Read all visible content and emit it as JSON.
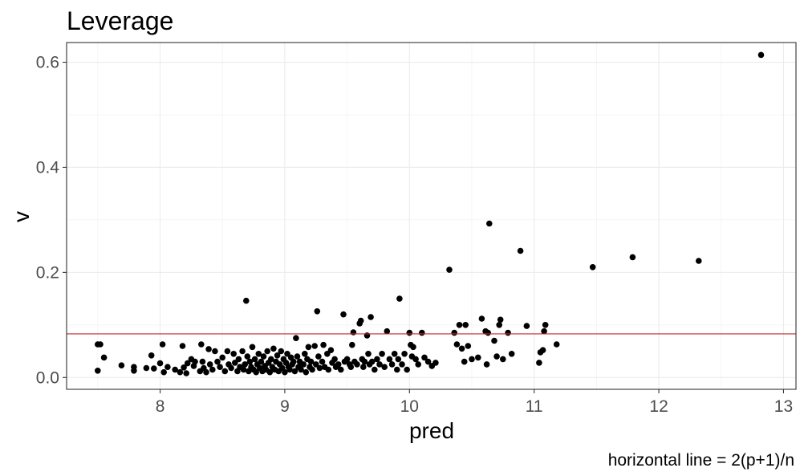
{
  "chart_data": {
    "type": "scatter",
    "title": "Leverage",
    "xlabel": "pred",
    "ylabel": "v",
    "caption": "horizontal line = 2(p+1)/n",
    "xlim": [
      7.25,
      13.1
    ],
    "ylim": [
      -0.0225,
      0.6375
    ],
    "x_ticks": [
      8,
      9,
      10,
      11,
      12,
      13
    ],
    "y_ticks": [
      0.0,
      0.2,
      0.4,
      0.6
    ],
    "x_tick_labels": [
      "8",
      "9",
      "10",
      "11",
      "12",
      "13"
    ],
    "y_tick_labels": [
      "0.0",
      "0.2",
      "0.4",
      "0.6"
    ],
    "grid": true,
    "hline": {
      "y": 0.083,
      "color": "#c0282d"
    },
    "point_color": "#000000",
    "points": [
      [
        7.5,
        0.063
      ],
      [
        7.52,
        0.063
      ],
      [
        7.5,
        0.013
      ],
      [
        7.55,
        0.038
      ],
      [
        7.69,
        0.023
      ],
      [
        7.79,
        0.02
      ],
      [
        7.79,
        0.013
      ],
      [
        7.89,
        0.018
      ],
      [
        7.93,
        0.042
      ],
      [
        7.95,
        0.017
      ],
      [
        8.0,
        0.027
      ],
      [
        8.02,
        0.063
      ],
      [
        8.03,
        0.01
      ],
      [
        8.06,
        0.02
      ],
      [
        8.12,
        0.015
      ],
      [
        8.16,
        0.01
      ],
      [
        8.18,
        0.06
      ],
      [
        8.19,
        0.019
      ],
      [
        8.21,
        0.008
      ],
      [
        8.22,
        0.027
      ],
      [
        8.25,
        0.035
      ],
      [
        8.27,
        0.022
      ],
      [
        8.28,
        0.03
      ],
      [
        8.32,
        0.012
      ],
      [
        8.33,
        0.063
      ],
      [
        8.34,
        0.03
      ],
      [
        8.35,
        0.018
      ],
      [
        8.37,
        0.01
      ],
      [
        8.39,
        0.054
      ],
      [
        8.4,
        0.025
      ],
      [
        8.42,
        0.015
      ],
      [
        8.44,
        0.05
      ],
      [
        8.46,
        0.03
      ],
      [
        8.48,
        0.02
      ],
      [
        8.5,
        0.038
      ],
      [
        8.52,
        0.012
      ],
      [
        8.54,
        0.05
      ],
      [
        8.55,
        0.025
      ],
      [
        8.57,
        0.018
      ],
      [
        8.59,
        0.045
      ],
      [
        8.6,
        0.028
      ],
      [
        8.62,
        0.012
      ],
      [
        8.63,
        0.035
      ],
      [
        8.64,
        0.02
      ],
      [
        8.66,
        0.05
      ],
      [
        8.67,
        0.015
      ],
      [
        8.68,
        0.025
      ],
      [
        8.69,
        0.146
      ],
      [
        8.7,
        0.04
      ],
      [
        8.71,
        0.012
      ],
      [
        8.72,
        0.03
      ],
      [
        8.73,
        0.02
      ],
      [
        8.74,
        0.058
      ],
      [
        8.75,
        0.015
      ],
      [
        8.76,
        0.035
      ],
      [
        8.77,
        0.01
      ],
      [
        8.78,
        0.025
      ],
      [
        8.79,
        0.045
      ],
      [
        8.8,
        0.018
      ],
      [
        8.81,
        0.03
      ],
      [
        8.82,
        0.012
      ],
      [
        8.83,
        0.04
      ],
      [
        8.84,
        0.022
      ],
      [
        8.85,
        0.015
      ],
      [
        8.86,
        0.05
      ],
      [
        8.87,
        0.028
      ],
      [
        8.88,
        0.01
      ],
      [
        8.89,
        0.035
      ],
      [
        8.9,
        0.02
      ],
      [
        8.91,
        0.055
      ],
      [
        8.92,
        0.015
      ],
      [
        8.93,
        0.03
      ],
      [
        8.94,
        0.042
      ],
      [
        8.95,
        0.012
      ],
      [
        8.96,
        0.025
      ],
      [
        8.97,
        0.05
      ],
      [
        8.98,
        0.018
      ],
      [
        8.99,
        0.035
      ],
      [
        9.0,
        0.01
      ],
      [
        9.01,
        0.028
      ],
      [
        9.02,
        0.045
      ],
      [
        9.03,
        0.02
      ],
      [
        9.04,
        0.015
      ],
      [
        9.05,
        0.038
      ],
      [
        9.06,
        0.025
      ],
      [
        9.07,
        0.03
      ],
      [
        9.08,
        0.012
      ],
      [
        9.09,
        0.075
      ],
      [
        9.1,
        0.04
      ],
      [
        9.11,
        0.02
      ],
      [
        9.12,
        0.03
      ],
      [
        9.13,
        0.015
      ],
      [
        9.15,
        0.025
      ],
      [
        9.16,
        0.045
      ],
      [
        9.17,
        0.01
      ],
      [
        9.18,
        0.035
      ],
      [
        9.19,
        0.058
      ],
      [
        9.2,
        0.02
      ],
      [
        9.21,
        0.03
      ],
      [
        9.22,
        0.015
      ],
      [
        9.24,
        0.06
      ],
      [
        9.25,
        0.025
      ],
      [
        9.26,
        0.126
      ],
      [
        9.27,
        0.04
      ],
      [
        9.28,
        0.018
      ],
      [
        9.3,
        0.03
      ],
      [
        9.31,
        0.062
      ],
      [
        9.32,
        0.02
      ],
      [
        9.34,
        0.045
      ],
      [
        9.35,
        0.015
      ],
      [
        9.37,
        0.052
      ],
      [
        9.38,
        0.028
      ],
      [
        9.4,
        0.035
      ],
      [
        9.41,
        0.02
      ],
      [
        9.43,
        0.025
      ],
      [
        9.45,
        0.015
      ],
      [
        9.47,
        0.12
      ],
      [
        9.48,
        0.03
      ],
      [
        9.5,
        0.035
      ],
      [
        9.52,
        0.025
      ],
      [
        9.53,
        0.02
      ],
      [
        9.54,
        0.062
      ],
      [
        9.55,
        0.086
      ],
      [
        9.56,
        0.03
      ],
      [
        9.58,
        0.025
      ],
      [
        9.6,
        0.103
      ],
      [
        9.61,
        0.108
      ],
      [
        9.62,
        0.035
      ],
      [
        9.63,
        0.02
      ],
      [
        9.64,
        0.03
      ],
      [
        9.66,
        0.08
      ],
      [
        9.67,
        0.045
      ],
      [
        9.68,
        0.025
      ],
      [
        9.69,
        0.115
      ],
      [
        9.7,
        0.03
      ],
      [
        9.72,
        0.015
      ],
      [
        9.74,
        0.035
      ],
      [
        9.76,
        0.025
      ],
      [
        9.78,
        0.045
      ],
      [
        9.8,
        0.02
      ],
      [
        9.82,
        0.088
      ],
      [
        9.84,
        0.035
      ],
      [
        9.86,
        0.025
      ],
      [
        9.88,
        0.045
      ],
      [
        9.9,
        0.015
      ],
      [
        9.91,
        0.035
      ],
      [
        9.92,
        0.15
      ],
      [
        9.94,
        0.025
      ],
      [
        9.96,
        0.045
      ],
      [
        9.98,
        0.015
      ],
      [
        10.0,
        0.085
      ],
      [
        10.01,
        0.062
      ],
      [
        10.02,
        0.04
      ],
      [
        10.03,
        0.058
      ],
      [
        10.05,
        0.035
      ],
      [
        10.07,
        0.025
      ],
      [
        10.1,
        0.085
      ],
      [
        10.12,
        0.038
      ],
      [
        10.15,
        0.03
      ],
      [
        10.18,
        0.022
      ],
      [
        10.21,
        0.028
      ],
      [
        10.32,
        0.205
      ],
      [
        10.36,
        0.085
      ],
      [
        10.38,
        0.063
      ],
      [
        10.4,
        0.1
      ],
      [
        10.42,
        0.055
      ],
      [
        10.44,
        0.03
      ],
      [
        10.45,
        0.1
      ],
      [
        10.47,
        0.06
      ],
      [
        10.5,
        0.035
      ],
      [
        10.55,
        0.038
      ],
      [
        10.58,
        0.112
      ],
      [
        10.61,
        0.088
      ],
      [
        10.62,
        0.025
      ],
      [
        10.63,
        0.085
      ],
      [
        10.64,
        0.293
      ],
      [
        10.68,
        0.07
      ],
      [
        10.7,
        0.04
      ],
      [
        10.72,
        0.1
      ],
      [
        10.73,
        0.11
      ],
      [
        10.75,
        0.035
      ],
      [
        10.79,
        0.085
      ],
      [
        10.82,
        0.045
      ],
      [
        10.89,
        0.241
      ],
      [
        10.94,
        0.098
      ],
      [
        11.04,
        0.028
      ],
      [
        11.05,
        0.048
      ],
      [
        11.07,
        0.052
      ],
      [
        11.08,
        0.088
      ],
      [
        11.09,
        0.1
      ],
      [
        11.18,
        0.063
      ],
      [
        11.47,
        0.21
      ],
      [
        11.79,
        0.229
      ],
      [
        12.32,
        0.222
      ],
      [
        12.82,
        0.614
      ]
    ]
  }
}
